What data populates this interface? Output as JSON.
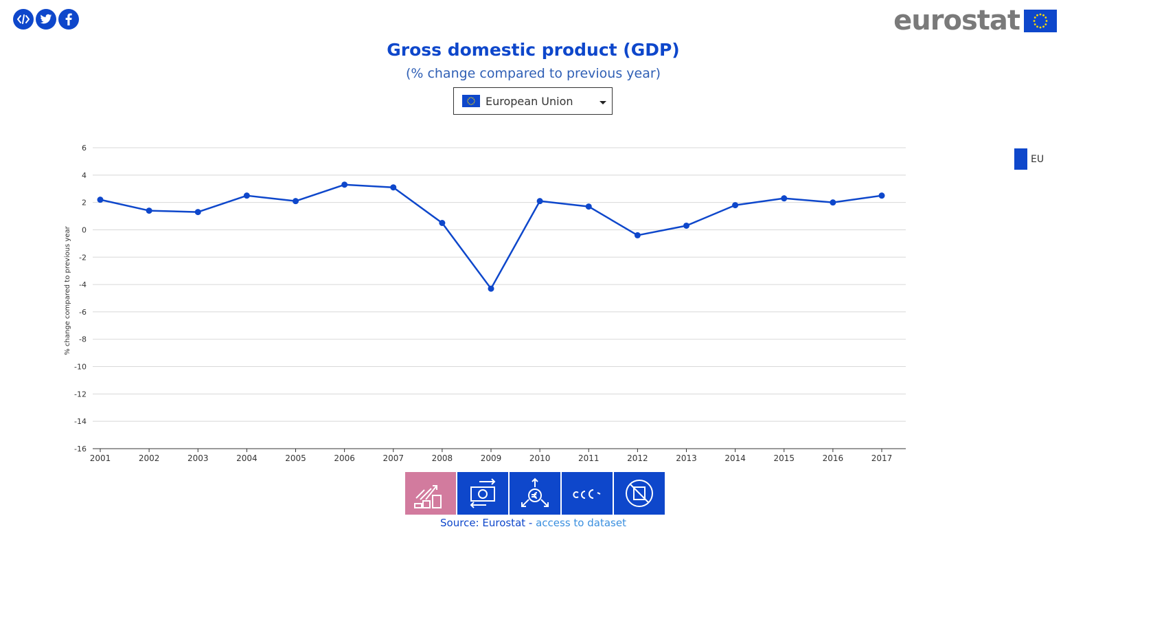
{
  "share": {
    "icons": [
      "embed-code-icon",
      "twitter-icon",
      "facebook-icon"
    ]
  },
  "logo": {
    "text": "eurostat"
  },
  "country_select": {
    "selected": "European Union"
  },
  "legend": {
    "label": "EU",
    "color": "#0e47cb"
  },
  "themes": {
    "icons": [
      "growth-coins-icon",
      "money-exchange-icon",
      "euro-circulation-icon",
      "euro-coins-icon",
      "no-tax-icon"
    ],
    "active_color": "#d27b9e",
    "color": "#0e47cb"
  },
  "source": {
    "prefix": "Source: Eurostat - ",
    "link": "access to dataset"
  },
  "chart_data": {
    "type": "line",
    "title": "Gross domestic product (GDP)",
    "subtitle": "(% change compared to previous year)",
    "ylabel": "% change compared to previous year",
    "xlabel": "",
    "ylim": [
      -16,
      6
    ],
    "yticks": [
      6,
      4,
      2,
      0,
      -2,
      -4,
      -6,
      -8,
      -10,
      -12,
      -14,
      -16
    ],
    "grid": true,
    "legend_position": "right",
    "x": [
      "2001",
      "2002",
      "2003",
      "2004",
      "2005",
      "2006",
      "2007",
      "2008",
      "2009",
      "2010",
      "2011",
      "2012",
      "2013",
      "2014",
      "2015",
      "2016",
      "2017"
    ],
    "series": [
      {
        "name": "EU",
        "color": "#0e47cb",
        "values": [
          2.2,
          1.4,
          1.3,
          2.5,
          2.1,
          3.3,
          3.1,
          0.5,
          -4.3,
          2.1,
          1.7,
          -0.4,
          0.3,
          1.8,
          2.3,
          2.0,
          2.5
        ]
      }
    ]
  }
}
